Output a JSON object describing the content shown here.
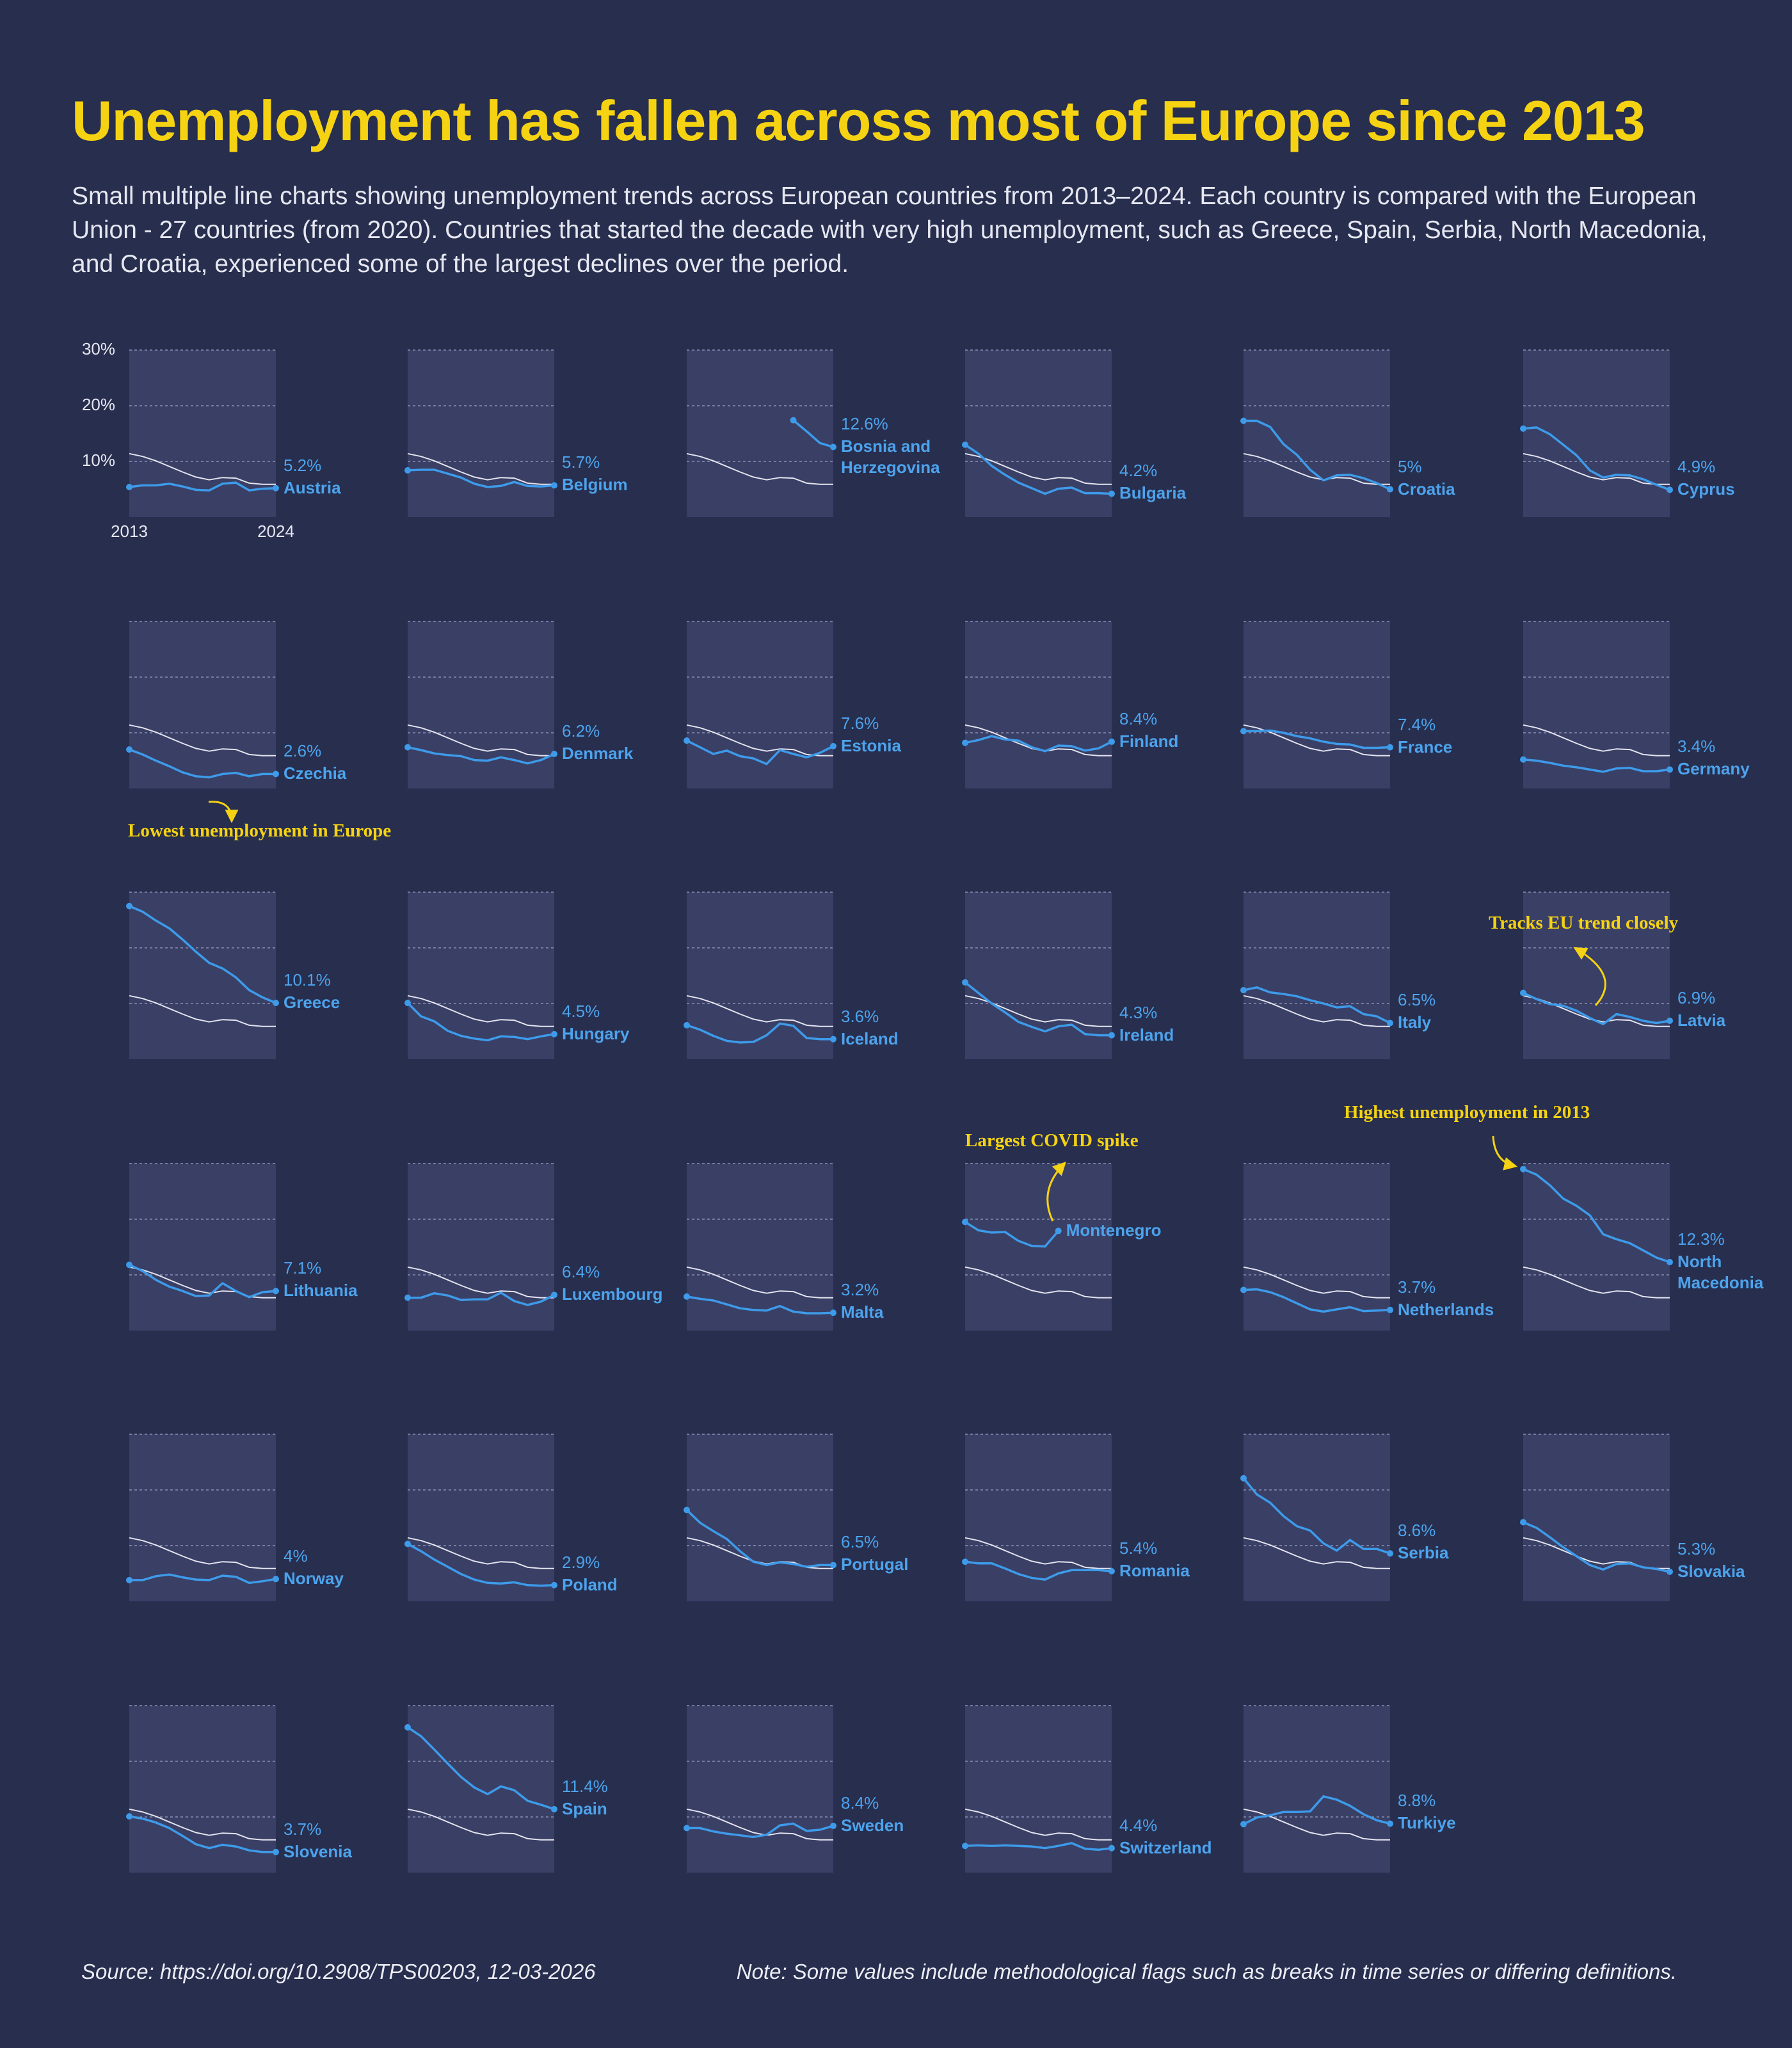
{
  "chart_data": {
    "type": "line",
    "title": "Unemployment has fallen across most of Europe since 2013",
    "subtitle": "Small multiple line charts showing unemployment trends across European countries from 2013–2024. Each country is compared with the European Union - 27 countries (from 2020). Countries that started the decade with very high unemployment, such as Greece, Spain, Serbia, North Macedonia, and Croatia, experienced some of the largest declines over the period.",
    "source": "Source: https://doi.org/10.2908/TPS00203, 12-03-2026",
    "note": "Note: Some values include methodological flags such as breaks in time series or differing definitions.",
    "x": [
      2013,
      2014,
      2015,
      2016,
      2017,
      2018,
      2019,
      2020,
      2021,
      2022,
      2023,
      2024
    ],
    "xlim": [
      2013,
      2024
    ],
    "xticks": [
      2013,
      2024
    ],
    "ylim": [
      0,
      30
    ],
    "yticks": [
      {
        "value": 10,
        "label": "10%"
      },
      {
        "value": 20,
        "label": "20%"
      },
      {
        "value": 30,
        "label": "30%"
      }
    ],
    "grid": true,
    "reference": {
      "color": "#e4e4ee",
      "values": [
        11.4,
        10.9,
        10.1,
        9.1,
        8.1,
        7.2,
        6.7,
        7.1,
        7.0,
        6.1,
        5.9,
        5.9
      ]
    },
    "series": [
      {
        "name": "Austria",
        "color": "#3d9be9",
        "values": [
          5.4,
          5.7,
          5.7,
          6.0,
          5.5,
          4.9,
          4.8,
          6.0,
          6.2,
          4.8,
          5.1,
          5.2
        ],
        "value_labels": [
          null,
          null,
          null,
          null,
          null,
          null,
          null,
          null,
          null,
          null,
          null,
          "5.2%"
        ]
      },
      {
        "name": "Belgium",
        "color": "#3d9be9",
        "values": [
          8.4,
          8.5,
          8.5,
          7.8,
          7.1,
          6.0,
          5.4,
          5.6,
          6.3,
          5.6,
          5.5,
          5.7
        ],
        "value_labels": [
          null,
          null,
          null,
          null,
          null,
          null,
          null,
          null,
          null,
          null,
          null,
          "5.7%"
        ]
      },
      {
        "name": "Bosnia and Herzegovina",
        "color": "#3d9be9",
        "values": [
          null,
          null,
          null,
          null,
          null,
          null,
          null,
          null,
          17.4,
          15.4,
          13.3,
          12.6
        ],
        "value_labels": [
          null,
          null,
          null,
          null,
          null,
          null,
          null,
          null,
          null,
          null,
          null,
          "12.6%"
        ]
      },
      {
        "name": "Bulgaria",
        "color": "#3d9be9",
        "values": [
          13.0,
          11.4,
          9.2,
          7.6,
          6.2,
          5.2,
          4.2,
          5.1,
          5.3,
          4.3,
          4.3,
          4.2
        ],
        "value_labels": [
          null,
          null,
          null,
          null,
          null,
          null,
          null,
          null,
          null,
          null,
          null,
          "4.2%"
        ]
      },
      {
        "name": "Croatia",
        "color": "#3d9be9",
        "values": [
          17.3,
          17.3,
          16.2,
          13.1,
          11.2,
          8.5,
          6.6,
          7.5,
          7.6,
          7.0,
          6.1,
          5.0
        ],
        "value_labels": [
          null,
          null,
          null,
          null,
          null,
          null,
          null,
          null,
          null,
          null,
          null,
          "5%"
        ]
      },
      {
        "name": "Cyprus",
        "color": "#3d9be9",
        "values": [
          15.9,
          16.1,
          14.9,
          13.0,
          11.1,
          8.4,
          7.1,
          7.6,
          7.5,
          6.8,
          5.8,
          4.9
        ],
        "value_labels": [
          null,
          null,
          null,
          null,
          null,
          null,
          null,
          null,
          null,
          null,
          null,
          "4.9%"
        ]
      },
      {
        "name": "Czechia",
        "color": "#3d9be9",
        "values": [
          7.0,
          6.1,
          5.0,
          4.0,
          2.9,
          2.2,
          2.0,
          2.6,
          2.8,
          2.2,
          2.6,
          2.6
        ],
        "value_labels": [
          null,
          null,
          null,
          null,
          null,
          null,
          null,
          null,
          null,
          null,
          null,
          "2.6%"
        ]
      },
      {
        "name": "Denmark",
        "color": "#3d9be9",
        "values": [
          7.4,
          6.9,
          6.3,
          6.0,
          5.8,
          5.1,
          5.0,
          5.6,
          5.1,
          4.5,
          5.1,
          6.2
        ],
        "value_labels": [
          null,
          null,
          null,
          null,
          null,
          null,
          null,
          null,
          null,
          null,
          null,
          "6.2%"
        ]
      },
      {
        "name": "Estonia",
        "color": "#3d9be9",
        "values": [
          8.6,
          7.4,
          6.2,
          6.8,
          5.8,
          5.4,
          4.4,
          6.9,
          6.2,
          5.6,
          6.4,
          7.6
        ],
        "value_labels": [
          null,
          null,
          null,
          null,
          null,
          null,
          null,
          null,
          null,
          null,
          null,
          "7.6%"
        ]
      },
      {
        "name": "Finland",
        "color": "#3d9be9",
        "values": [
          8.2,
          8.7,
          9.4,
          8.8,
          8.6,
          7.4,
          6.7,
          7.7,
          7.6,
          6.8,
          7.2,
          8.4
        ],
        "value_labels": [
          null,
          null,
          null,
          null,
          null,
          null,
          null,
          null,
          null,
          null,
          null,
          "8.4%"
        ]
      },
      {
        "name": "France",
        "color": "#3d9be9",
        "values": [
          10.3,
          10.3,
          10.4,
          10.0,
          9.4,
          9.0,
          8.4,
          8.0,
          7.9,
          7.3,
          7.3,
          7.4
        ],
        "value_labels": [
          null,
          null,
          null,
          null,
          null,
          null,
          null,
          null,
          null,
          null,
          null,
          "7.4%"
        ]
      },
      {
        "name": "Germany",
        "color": "#3d9be9",
        "values": [
          5.2,
          5.0,
          4.6,
          4.1,
          3.8,
          3.4,
          3.0,
          3.6,
          3.7,
          3.1,
          3.1,
          3.4
        ],
        "value_labels": [
          null,
          null,
          null,
          null,
          null,
          null,
          null,
          null,
          null,
          null,
          null,
          "3.4%"
        ]
      },
      {
        "name": "Greece",
        "color": "#3d9be9",
        "values": [
          27.5,
          26.5,
          24.9,
          23.5,
          21.5,
          19.3,
          17.3,
          16.3,
          14.7,
          12.4,
          11.1,
          10.1
        ],
        "value_labels": [
          null,
          null,
          null,
          null,
          null,
          null,
          null,
          null,
          null,
          null,
          null,
          "10.1%"
        ]
      },
      {
        "name": "Hungary",
        "color": "#3d9be9",
        "values": [
          10.1,
          7.7,
          6.8,
          5.1,
          4.2,
          3.7,
          3.4,
          4.1,
          4.0,
          3.6,
          4.1,
          4.5
        ],
        "value_labels": [
          null,
          null,
          null,
          null,
          null,
          null,
          null,
          null,
          null,
          null,
          null,
          "4.5%"
        ]
      },
      {
        "name": "Iceland",
        "color": "#3d9be9",
        "values": [
          6.1,
          5.3,
          4.2,
          3.3,
          3.0,
          3.1,
          4.3,
          6.4,
          6.0,
          3.8,
          3.6,
          3.6
        ],
        "value_labels": [
          null,
          null,
          null,
          null,
          null,
          null,
          null,
          null,
          null,
          null,
          null,
          "3.6%"
        ]
      },
      {
        "name": "Ireland",
        "color": "#3d9be9",
        "values": [
          13.8,
          11.9,
          10.0,
          8.4,
          6.7,
          5.8,
          5.0,
          5.9,
          6.2,
          4.5,
          4.3,
          4.3
        ],
        "value_labels": [
          null,
          null,
          null,
          null,
          null,
          null,
          null,
          null,
          null,
          null,
          null,
          "4.3%"
        ]
      },
      {
        "name": "Italy",
        "color": "#3d9be9",
        "values": [
          12.4,
          12.9,
          12.0,
          11.7,
          11.3,
          10.6,
          10.0,
          9.3,
          9.5,
          8.1,
          7.7,
          6.5
        ],
        "value_labels": [
          null,
          null,
          null,
          null,
          null,
          null,
          null,
          null,
          null,
          null,
          null,
          "6.5%"
        ]
      },
      {
        "name": "Latvia",
        "color": "#3d9be9",
        "values": [
          11.9,
          10.8,
          9.9,
          9.6,
          8.7,
          7.4,
          6.3,
          8.1,
          7.6,
          6.9,
          6.5,
          6.9
        ],
        "value_labels": [
          null,
          null,
          null,
          null,
          null,
          null,
          null,
          null,
          null,
          null,
          null,
          "6.9%"
        ]
      },
      {
        "name": "Lithuania",
        "color": "#3d9be9",
        "values": [
          11.8,
          10.7,
          9.1,
          7.9,
          7.1,
          6.2,
          6.3,
          8.5,
          7.1,
          6.0,
          6.9,
          7.1
        ],
        "value_labels": [
          null,
          null,
          null,
          null,
          null,
          null,
          null,
          null,
          null,
          null,
          null,
          "7.1%"
        ]
      },
      {
        "name": "Luxembourg",
        "color": "#3d9be9",
        "values": [
          5.9,
          5.9,
          6.7,
          6.3,
          5.5,
          5.6,
          5.6,
          6.8,
          5.3,
          4.6,
          5.2,
          6.4
        ],
        "value_labels": [
          null,
          null,
          null,
          null,
          null,
          null,
          null,
          null,
          null,
          null,
          null,
          "6.4%"
        ]
      },
      {
        "name": "Malta",
        "color": "#3d9be9",
        "values": [
          6.1,
          5.7,
          5.4,
          4.7,
          4.0,
          3.7,
          3.6,
          4.4,
          3.4,
          3.1,
          3.1,
          3.2
        ],
        "value_labels": [
          null,
          null,
          null,
          null,
          null,
          null,
          null,
          null,
          null,
          null,
          null,
          "3.2%"
        ]
      },
      {
        "name": "Montenegro",
        "color": "#3d9be9",
        "values": [
          19.5,
          18.0,
          17.6,
          17.7,
          16.1,
          15.2,
          15.1,
          17.9,
          null,
          null,
          null,
          null
        ]
      },
      {
        "name": "Netherlands",
        "color": "#3d9be9",
        "values": [
          7.3,
          7.4,
          6.9,
          6.0,
          4.9,
          3.8,
          3.4,
          3.8,
          4.2,
          3.5,
          3.6,
          3.7
        ],
        "value_labels": [
          null,
          null,
          null,
          null,
          null,
          null,
          null,
          null,
          null,
          null,
          null,
          "3.7%"
        ]
      },
      {
        "name": "North Macedonia",
        "color": "#3d9be9",
        "values": [
          29.0,
          28.0,
          26.1,
          23.7,
          22.4,
          20.7,
          17.3,
          16.4,
          15.7,
          14.4,
          13.1,
          12.3
        ],
        "value_labels": [
          null,
          null,
          null,
          null,
          null,
          null,
          null,
          null,
          null,
          null,
          null,
          "12.3%"
        ]
      },
      {
        "name": "Norway",
        "color": "#3d9be9",
        "values": [
          3.8,
          3.8,
          4.5,
          4.8,
          4.3,
          3.9,
          3.8,
          4.6,
          4.4,
          3.3,
          3.6,
          4.0
        ],
        "value_labels": [
          null,
          null,
          null,
          null,
          null,
          null,
          null,
          null,
          null,
          null,
          null,
          "4%"
        ]
      },
      {
        "name": "Poland",
        "color": "#3d9be9",
        "values": [
          10.3,
          9.0,
          7.5,
          6.2,
          4.9,
          3.9,
          3.3,
          3.2,
          3.4,
          2.9,
          2.8,
          2.9
        ],
        "value_labels": [
          null,
          null,
          null,
          null,
          null,
          null,
          null,
          null,
          null,
          null,
          null,
          "2.9%"
        ]
      },
      {
        "name": "Portugal",
        "color": "#3d9be9",
        "values": [
          16.4,
          14.1,
          12.6,
          11.2,
          9.0,
          7.1,
          6.5,
          7.0,
          6.7,
          6.2,
          6.5,
          6.5
        ],
        "value_labels": [
          null,
          null,
          null,
          null,
          null,
          null,
          null,
          null,
          null,
          null,
          null,
          "6.5%"
        ]
      },
      {
        "name": "Romania",
        "color": "#3d9be9",
        "values": [
          7.1,
          6.8,
          6.8,
          5.9,
          4.9,
          4.2,
          3.9,
          5.0,
          5.6,
          5.6,
          5.6,
          5.4
        ],
        "value_labels": [
          null,
          null,
          null,
          null,
          null,
          null,
          null,
          null,
          null,
          null,
          null,
          "5.4%"
        ]
      },
      {
        "name": "Serbia",
        "color": "#3d9be9",
        "values": [
          22.1,
          19.2,
          17.7,
          15.3,
          13.5,
          12.7,
          10.4,
          9.1,
          11.0,
          9.4,
          9.4,
          8.6
        ],
        "value_labels": [
          null,
          null,
          null,
          null,
          null,
          null,
          null,
          null,
          null,
          null,
          null,
          "8.6%"
        ]
      },
      {
        "name": "Slovakia",
        "color": "#3d9be9",
        "values": [
          14.2,
          13.2,
          11.5,
          9.7,
          8.1,
          6.5,
          5.7,
          6.7,
          6.8,
          6.1,
          5.8,
          5.3
        ],
        "value_labels": [
          null,
          null,
          null,
          null,
          null,
          null,
          null,
          null,
          null,
          null,
          null,
          "5.3%"
        ]
      },
      {
        "name": "Slovenia",
        "color": "#3d9be9",
        "values": [
          10.1,
          9.7,
          9.0,
          8.0,
          6.6,
          5.1,
          4.4,
          5.0,
          4.7,
          4.0,
          3.7,
          3.7
        ],
        "value_labels": [
          null,
          null,
          null,
          null,
          null,
          null,
          null,
          null,
          null,
          null,
          null,
          "3.7%"
        ]
      },
      {
        "name": "Spain",
        "color": "#3d9be9",
        "values": [
          26.1,
          24.5,
          22.1,
          19.6,
          17.2,
          15.3,
          14.1,
          15.5,
          14.8,
          12.9,
          12.2,
          11.4
        ],
        "value_labels": [
          null,
          null,
          null,
          null,
          null,
          null,
          null,
          null,
          null,
          null,
          null,
          "11.4%"
        ]
      },
      {
        "name": "Sweden",
        "color": "#3d9be9",
        "values": [
          8.0,
          8.0,
          7.4,
          7.0,
          6.7,
          6.4,
          6.8,
          8.5,
          8.8,
          7.5,
          7.7,
          8.4
        ],
        "value_labels": [
          null,
          null,
          null,
          null,
          null,
          null,
          null,
          null,
          null,
          null,
          null,
          "8.4%"
        ]
      },
      {
        "name": "Switzerland",
        "color": "#3d9be9",
        "values": [
          4.8,
          4.9,
          4.8,
          4.9,
          4.8,
          4.7,
          4.4,
          4.8,
          5.3,
          4.3,
          4.1,
          4.4
        ],
        "value_labels": [
          null,
          null,
          null,
          null,
          null,
          null,
          null,
          null,
          null,
          null,
          null,
          "4.4%"
        ]
      },
      {
        "name": "Turkiye",
        "color": "#3d9be9",
        "values": [
          8.7,
          9.9,
          10.3,
          10.9,
          10.9,
          11.0,
          13.7,
          13.1,
          12.0,
          10.5,
          9.4,
          8.8
        ],
        "value_labels": [
          null,
          null,
          null,
          null,
          null,
          null,
          null,
          null,
          null,
          null,
          null,
          "8.8%"
        ]
      }
    ],
    "annotations": [
      {
        "text": "Lowest unemployment in Europe"
      },
      {
        "text": "Tracks EU trend closely"
      },
      {
        "text": "Largest COVID spike"
      },
      {
        "text": "Highest unemployment in 2013"
      }
    ]
  }
}
